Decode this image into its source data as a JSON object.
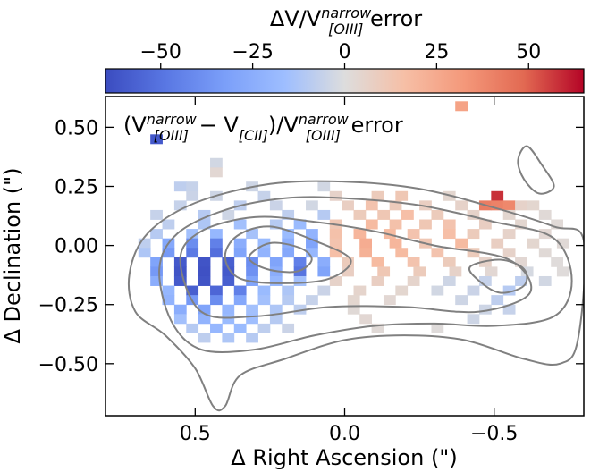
{
  "chart_data": {
    "type": "heatmap",
    "title": "",
    "colorbar": {
      "label_prefix": "ΔV/V",
      "label_sup": "narrow",
      "label_sub": "[OIII]",
      "label_suffix": " error",
      "range": [
        -65,
        65
      ],
      "ticks": [
        -50,
        -25,
        0,
        25,
        50
      ],
      "tick_labels": [
        "−50",
        "−25",
        "0",
        "25",
        "50"
      ],
      "colormap": "coolwarm",
      "colors": {
        "low": "#3b4cc0",
        "mid": "#dddddd",
        "high": "#b40426"
      },
      "placement": "top"
    },
    "annotation": {
      "open": "(V",
      "sup1": "narrow",
      "sub1": "[OIII]",
      "minus": " − V",
      "sub2": "[CII]",
      "close": ")/V",
      "sup3": "narrow",
      "sub3": "[OIII]",
      "suffix": " error"
    },
    "xlabel": "Δ Right Ascension (\")",
    "ylabel": "Δ Declination (\")",
    "xlim": [
      0.8,
      -0.8
    ],
    "ylim": [
      -0.72,
      0.63
    ],
    "xticks": [
      0.5,
      0.0,
      -0.5
    ],
    "xtick_labels": [
      "0.5",
      "0.0",
      "−0.5"
    ],
    "yticks": [
      0.5,
      0.25,
      0.0,
      -0.25,
      -0.5
    ],
    "ytick_labels": [
      "0.50",
      "0.25",
      "0.00",
      "−0.25",
      "−0.50"
    ],
    "pixel_scale_arcsec": 0.04,
    "cells": [
      [
        0.63,
        0.45,
        -60
      ],
      [
        -0.39,
        0.59,
        28
      ],
      [
        0.43,
        0.35,
        -3
      ],
      [
        0.43,
        0.31,
        3
      ],
      [
        -0.51,
        0.21,
        58
      ],
      [
        -0.47,
        0.17,
        42
      ],
      [
        -0.51,
        0.17,
        40
      ],
      [
        -0.55,
        0.17,
        38
      ],
      [
        0.55,
        0.25,
        -8
      ],
      [
        0.51,
        0.25,
        -6
      ],
      [
        0.31,
        0.25,
        -4
      ],
      [
        0.07,
        0.25,
        -3
      ],
      [
        -0.59,
        0.17,
        6
      ],
      [
        -0.63,
        0.17,
        4
      ],
      [
        0.51,
        0.21,
        -5
      ],
      [
        0.43,
        0.21,
        -4
      ],
      [
        0.27,
        0.21,
        -6
      ],
      [
        0.03,
        0.21,
        6
      ],
      [
        -0.11,
        0.21,
        10
      ],
      [
        -0.19,
        0.21,
        12
      ],
      [
        -0.35,
        0.21,
        4
      ],
      [
        0.55,
        0.17,
        -6
      ],
      [
        0.35,
        0.17,
        -8
      ],
      [
        0.23,
        0.17,
        -5
      ],
      [
        0.11,
        0.17,
        -3
      ],
      [
        -0.01,
        0.17,
        8
      ],
      [
        -0.09,
        0.17,
        14
      ],
      [
        -0.17,
        0.17,
        10
      ],
      [
        -0.27,
        0.17,
        8
      ],
      [
        -0.39,
        0.17,
        6
      ],
      [
        0.63,
        0.13,
        -6
      ],
      [
        0.47,
        0.13,
        -10
      ],
      [
        0.39,
        0.13,
        -4
      ],
      [
        0.19,
        0.13,
        -8
      ],
      [
        0.07,
        0.13,
        -10
      ],
      [
        -0.05,
        0.13,
        10
      ],
      [
        -0.13,
        0.13,
        12
      ],
      [
        -0.21,
        0.13,
        16
      ],
      [
        -0.31,
        0.13,
        10
      ],
      [
        -0.43,
        0.13,
        6
      ],
      [
        -0.55,
        0.13,
        4
      ],
      [
        -0.67,
        0.13,
        2
      ],
      [
        0.59,
        0.09,
        -8
      ],
      [
        0.47,
        0.09,
        -12
      ],
      [
        0.35,
        0.09,
        -15
      ],
      [
        0.23,
        0.09,
        -10
      ],
      [
        0.15,
        0.09,
        -18
      ],
      [
        0.03,
        0.09,
        12
      ],
      [
        -0.09,
        0.09,
        18
      ],
      [
        -0.17,
        0.09,
        15
      ],
      [
        -0.27,
        0.09,
        12
      ],
      [
        -0.35,
        0.09,
        14
      ],
      [
        -0.47,
        0.09,
        8
      ],
      [
        -0.59,
        0.09,
        4
      ],
      [
        -0.71,
        0.09,
        2
      ],
      [
        0.63,
        0.05,
        -10
      ],
      [
        0.51,
        0.05,
        -15
      ],
      [
        0.43,
        0.05,
        -20
      ],
      [
        0.31,
        0.05,
        -14
      ],
      [
        0.19,
        0.05,
        -18
      ],
      [
        0.11,
        0.05,
        -22
      ],
      [
        0.03,
        0.05,
        15
      ],
      [
        -0.05,
        0.05,
        20
      ],
      [
        -0.15,
        0.05,
        18
      ],
      [
        -0.23,
        0.05,
        14
      ],
      [
        -0.35,
        0.05,
        16
      ],
      [
        -0.43,
        0.05,
        10
      ],
      [
        -0.55,
        0.05,
        6
      ],
      [
        -0.67,
        0.05,
        3
      ],
      [
        0.67,
        0.01,
        -8
      ],
      [
        0.59,
        0.01,
        -28
      ],
      [
        0.51,
        0.01,
        -40
      ],
      [
        0.43,
        0.01,
        -45
      ],
      [
        0.35,
        0.01,
        -25
      ],
      [
        0.27,
        0.01,
        -18
      ],
      [
        0.19,
        0.01,
        -24
      ],
      [
        0.11,
        0.01,
        -30
      ],
      [
        0.03,
        0.01,
        14
      ],
      [
        -0.07,
        0.01,
        24
      ],
      [
        -0.17,
        0.01,
        20
      ],
      [
        -0.27,
        0.01,
        12
      ],
      [
        -0.39,
        0.01,
        18
      ],
      [
        -0.51,
        0.01,
        8
      ],
      [
        -0.63,
        0.01,
        4
      ],
      [
        -0.73,
        0.01,
        2
      ],
      [
        0.67,
        -0.03,
        -12
      ],
      [
        0.59,
        -0.03,
        -35
      ],
      [
        0.51,
        -0.03,
        -48
      ],
      [
        0.43,
        -0.03,
        -52
      ],
      [
        0.35,
        -0.03,
        -30
      ],
      [
        0.27,
        -0.03,
        -22
      ],
      [
        0.19,
        -0.03,
        -28
      ],
      [
        0.11,
        -0.03,
        -20
      ],
      [
        0.03,
        -0.03,
        16
      ],
      [
        -0.07,
        -0.03,
        22
      ],
      [
        -0.19,
        -0.03,
        18
      ],
      [
        -0.31,
        -0.03,
        14
      ],
      [
        -0.43,
        -0.03,
        10
      ],
      [
        -0.55,
        -0.03,
        6
      ],
      [
        -0.67,
        -0.03,
        2
      ],
      [
        0.63,
        -0.07,
        -30
      ],
      [
        0.55,
        -0.07,
        -60
      ],
      [
        0.47,
        -0.07,
        -62
      ],
      [
        0.39,
        -0.07,
        -58
      ],
      [
        0.31,
        -0.07,
        -40
      ],
      [
        0.23,
        -0.07,
        -30
      ],
      [
        0.15,
        -0.07,
        -45
      ],
      [
        0.07,
        -0.07,
        -25
      ],
      [
        -0.01,
        -0.07,
        10
      ],
      [
        -0.11,
        -0.07,
        18
      ],
      [
        -0.23,
        -0.07,
        14
      ],
      [
        -0.35,
        -0.07,
        10
      ],
      [
        -0.47,
        -0.07,
        6
      ],
      [
        -0.59,
        -0.07,
        3
      ],
      [
        -0.71,
        -0.07,
        1
      ],
      [
        0.63,
        -0.11,
        -35
      ],
      [
        0.55,
        -0.11,
        -62
      ],
      [
        0.47,
        -0.11,
        -63
      ],
      [
        0.39,
        -0.11,
        -60
      ],
      [
        0.31,
        -0.11,
        -38
      ],
      [
        0.23,
        -0.11,
        -25
      ],
      [
        0.15,
        -0.11,
        -50
      ],
      [
        0.07,
        -0.11,
        -30
      ],
      [
        -0.01,
        -0.11,
        8
      ],
      [
        -0.13,
        -0.11,
        12
      ],
      [
        -0.25,
        -0.11,
        10
      ],
      [
        -0.37,
        -0.11,
        6
      ],
      [
        -0.49,
        -0.11,
        3
      ],
      [
        -0.61,
        -0.11,
        -2
      ],
      [
        -0.73,
        -0.11,
        1
      ],
      [
        0.63,
        -0.15,
        -25
      ],
      [
        0.55,
        -0.15,
        -60
      ],
      [
        0.47,
        -0.15,
        -62
      ],
      [
        0.39,
        -0.15,
        -58
      ],
      [
        0.31,
        -0.15,
        -30
      ],
      [
        0.23,
        -0.15,
        -20
      ],
      [
        0.15,
        -0.15,
        -15
      ],
      [
        0.03,
        -0.15,
        6
      ],
      [
        -0.11,
        -0.15,
        8
      ],
      [
        -0.23,
        -0.15,
        5
      ],
      [
        -0.35,
        -0.15,
        -4
      ],
      [
        -0.47,
        -0.15,
        -6
      ],
      [
        -0.59,
        -0.15,
        -8
      ],
      [
        -0.67,
        -0.15,
        -3
      ],
      [
        0.59,
        -0.19,
        -20
      ],
      [
        0.51,
        -0.19,
        -58
      ],
      [
        0.43,
        -0.19,
        -55
      ],
      [
        0.35,
        -0.19,
        -45
      ],
      [
        0.27,
        -0.19,
        -18
      ],
      [
        0.19,
        -0.19,
        -12
      ],
      [
        0.07,
        -0.19,
        -5
      ],
      [
        -0.05,
        -0.19,
        5
      ],
      [
        -0.19,
        -0.19,
        4
      ],
      [
        -0.31,
        -0.19,
        -3
      ],
      [
        -0.43,
        -0.19,
        -5
      ],
      [
        -0.55,
        -0.19,
        -10
      ],
      [
        0.59,
        -0.23,
        -22
      ],
      [
        0.51,
        -0.23,
        -35
      ],
      [
        0.43,
        -0.23,
        -40
      ],
      [
        0.35,
        -0.23,
        -28
      ],
      [
        0.27,
        -0.23,
        -15
      ],
      [
        0.19,
        -0.23,
        -10
      ],
      [
        0.11,
        -0.23,
        -6
      ],
      [
        -0.03,
        -0.23,
        4
      ],
      [
        -0.15,
        -0.23,
        3
      ],
      [
        -0.39,
        -0.23,
        -4
      ],
      [
        -0.51,
        -0.23,
        -8
      ],
      [
        0.55,
        -0.27,
        -25
      ],
      [
        0.47,
        -0.27,
        -30
      ],
      [
        0.39,
        -0.27,
        -20
      ],
      [
        0.31,
        -0.27,
        -15
      ],
      [
        0.23,
        -0.27,
        -12
      ],
      [
        0.15,
        -0.27,
        -8
      ],
      [
        -0.03,
        -0.27,
        2
      ],
      [
        -0.47,
        -0.27,
        -4
      ],
      [
        -0.55,
        -0.27,
        -6
      ],
      [
        0.55,
        -0.31,
        -15
      ],
      [
        0.47,
        -0.31,
        -22
      ],
      [
        0.39,
        -0.31,
        -18
      ],
      [
        0.31,
        -0.31,
        -16
      ],
      [
        0.23,
        -0.31,
        -10
      ],
      [
        -0.07,
        -0.31,
        3
      ],
      [
        -0.43,
        -0.31,
        -4
      ],
      [
        0.51,
        -0.35,
        -10
      ],
      [
        0.43,
        -0.35,
        -20
      ],
      [
        0.35,
        -0.35,
        -18
      ],
      [
        0.27,
        -0.35,
        -8
      ],
      [
        0.19,
        -0.35,
        -5
      ],
      [
        -0.11,
        -0.35,
        2
      ],
      [
        -0.31,
        -0.35,
        1
      ],
      [
        0.47,
        -0.39,
        -8
      ],
      [
        0.39,
        -0.39,
        -12
      ],
      [
        0.31,
        -0.39,
        -10
      ]
    ],
    "contours": [
      [
        [
          0.72,
          -0.12
        ],
        [
          0.66,
          0.05
        ],
        [
          0.5,
          0.18
        ],
        [
          0.25,
          0.26
        ],
        [
          0.0,
          0.27
        ],
        [
          -0.25,
          0.24
        ],
        [
          -0.5,
          0.16
        ],
        [
          -0.7,
          0.08
        ],
        [
          -0.8,
          0.02
        ],
        [
          -0.78,
          -0.4
        ],
        [
          -0.72,
          -0.5
        ],
        [
          -0.6,
          -0.48
        ],
        [
          -0.4,
          -0.4
        ],
        [
          -0.2,
          -0.38
        ],
        [
          0.0,
          -0.4
        ],
        [
          0.2,
          -0.48
        ],
        [
          0.35,
          -0.55
        ],
        [
          0.4,
          -0.68
        ],
        [
          0.44,
          -0.68
        ],
        [
          0.5,
          -0.52
        ],
        [
          0.6,
          -0.38
        ],
        [
          0.7,
          -0.28
        ]
      ],
      [
        [
          0.62,
          -0.1
        ],
        [
          0.56,
          0.05
        ],
        [
          0.4,
          0.15
        ],
        [
          0.2,
          0.2
        ],
        [
          0.0,
          0.2
        ],
        [
          -0.25,
          0.17
        ],
        [
          -0.5,
          0.1
        ],
        [
          -0.7,
          0.03
        ],
        [
          -0.76,
          -0.15
        ],
        [
          -0.7,
          -0.3
        ],
        [
          -0.5,
          -0.34
        ],
        [
          -0.3,
          -0.33
        ],
        [
          -0.1,
          -0.34
        ],
        [
          0.1,
          -0.38
        ],
        [
          0.3,
          -0.44
        ],
        [
          0.48,
          -0.44
        ],
        [
          0.58,
          -0.32
        ]
      ],
      [
        [
          0.55,
          -0.06
        ],
        [
          0.48,
          0.06
        ],
        [
          0.3,
          0.12
        ],
        [
          0.1,
          0.1
        ],
        [
          -0.1,
          0.06
        ],
        [
          -0.3,
          0.0
        ],
        [
          -0.55,
          -0.06
        ],
        [
          -0.62,
          -0.2
        ],
        [
          -0.45,
          -0.28
        ],
        [
          -0.2,
          -0.26
        ],
        [
          0.05,
          -0.26
        ],
        [
          0.3,
          -0.3
        ],
        [
          0.48,
          -0.28
        ]
      ],
      [
        [
          0.4,
          -0.05
        ],
        [
          0.36,
          0.04
        ],
        [
          0.25,
          0.08
        ],
        [
          0.1,
          0.02
        ],
        [
          -0.02,
          -0.06
        ],
        [
          0.05,
          -0.14
        ],
        [
          0.2,
          -0.16
        ],
        [
          0.35,
          -0.14
        ]
      ],
      [
        [
          0.32,
          -0.05
        ],
        [
          0.25,
          0.01
        ],
        [
          0.15,
          -0.01
        ],
        [
          0.11,
          -0.06
        ],
        [
          0.16,
          -0.11
        ],
        [
          0.26,
          -0.1
        ]
      ],
      [
        [
          -0.42,
          -0.09
        ],
        [
          -0.52,
          -0.06
        ],
        [
          -0.6,
          -0.1
        ],
        [
          -0.6,
          -0.17
        ],
        [
          -0.52,
          -0.2
        ],
        [
          -0.45,
          -0.15
        ]
      ],
      [
        [
          -0.61,
          0.42
        ],
        [
          -0.66,
          0.34
        ],
        [
          -0.7,
          0.25
        ],
        [
          -0.65,
          0.22
        ],
        [
          -0.6,
          0.28
        ],
        [
          -0.58,
          0.36
        ]
      ]
    ]
  }
}
